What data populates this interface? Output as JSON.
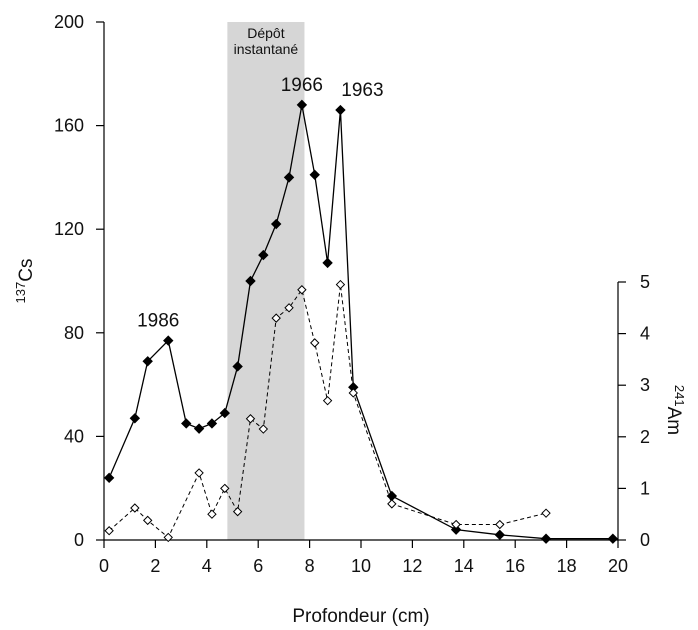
{
  "chart_data": {
    "type": "line",
    "xlabel": "Profondeur (cm)",
    "ylabel_left": {
      "sup": "137",
      "base": "Cs"
    },
    "ylabel_right": {
      "sup": "241",
      "base": "Am"
    },
    "xlim": [
      0,
      20
    ],
    "ylim_left": [
      0,
      200
    ],
    "ylim_right": [
      0,
      5
    ],
    "x_ticks": [
      0,
      2,
      4,
      6,
      8,
      10,
      12,
      14,
      16,
      18,
      20
    ],
    "y_ticks_left": [
      0,
      40,
      80,
      120,
      160,
      200
    ],
    "y_ticks_right": [
      0,
      1,
      2,
      3,
      4,
      5
    ],
    "shaded_band": {
      "x0": 4.8,
      "x1": 7.8,
      "label_lines": [
        "Dépôt",
        "instantané"
      ]
    },
    "series": [
      {
        "key": "cs137",
        "axis": "left",
        "style": "solid",
        "marker": "filled-diamond",
        "x": [
          0.2,
          1.2,
          1.7,
          2.5,
          3.2,
          3.7,
          4.2,
          4.7,
          5.2,
          5.7,
          6.2,
          6.7,
          7.2,
          7.7,
          8.2,
          8.7,
          9.2,
          9.7,
          11.2,
          13.7,
          15.4,
          17.2,
          19.8
        ],
        "y": [
          24,
          47,
          69,
          77,
          45,
          43,
          45,
          49,
          67,
          100,
          110,
          122,
          140,
          168,
          141,
          107,
          166,
          59,
          17,
          4,
          2,
          0.5,
          0.5
        ]
      },
      {
        "key": "am241",
        "axis": "right",
        "style": "dashed",
        "marker": "open-diamond",
        "x": [
          0.2,
          1.2,
          1.7,
          2.5,
          3.7,
          4.2,
          4.7,
          5.2,
          5.7,
          6.2,
          6.7,
          7.2,
          7.7,
          8.2,
          8.7,
          9.2,
          9.7,
          11.2,
          13.7,
          15.4,
          17.2
        ],
        "y": [
          0.18,
          0.62,
          0.38,
          0.05,
          1.3,
          0.5,
          1.0,
          0.55,
          2.35,
          2.15,
          4.3,
          4.5,
          4.85,
          3.82,
          2.7,
          4.95,
          2.85,
          0.7,
          0.3,
          0.3,
          0.52
        ]
      }
    ],
    "annotations": [
      {
        "text": "1986",
        "x": 2.5,
        "y": 77
      },
      {
        "text": "1966",
        "x": 7.7,
        "y": 168
      },
      {
        "text": "1963",
        "x": 9.2,
        "y": 166
      }
    ]
  }
}
